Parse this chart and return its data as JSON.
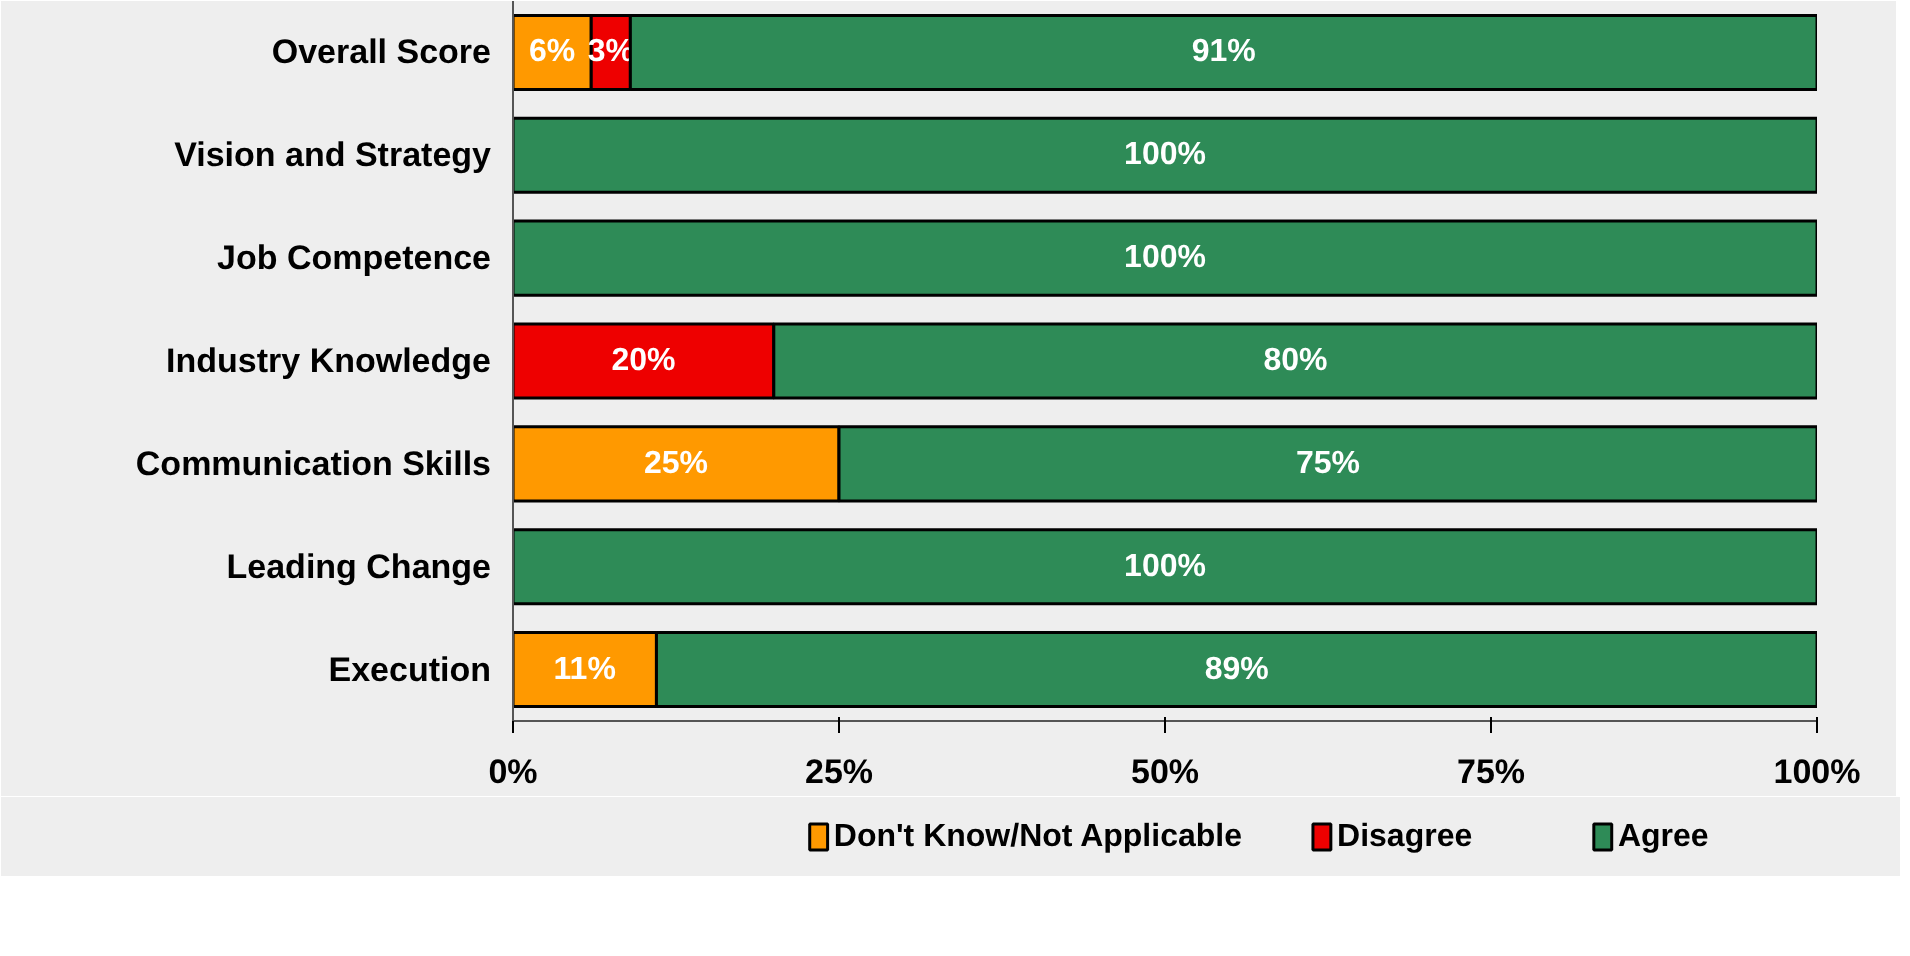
{
  "chart_data": {
    "type": "bar",
    "orientation": "horizontal",
    "stacked": true,
    "categories": [
      "Overall Score",
      "Vision and Strategy",
      "Job Competence",
      "Industry Knowledge",
      "Communication Skills",
      "Leading Change",
      "Execution"
    ],
    "series": [
      {
        "name": "Don't Know/Not Applicable",
        "color": "#ff9900",
        "values": [
          6,
          null,
          null,
          null,
          25,
          null,
          11
        ],
        "value_labels": [
          "6%",
          null,
          null,
          null,
          "25%",
          null,
          "11%"
        ]
      },
      {
        "name": "Disagree",
        "color": "#ee0000",
        "values": [
          3,
          null,
          null,
          20,
          null,
          null,
          null
        ],
        "value_labels": [
          "3%",
          null,
          null,
          "20%",
          null,
          null,
          null
        ]
      },
      {
        "name": "Agree",
        "color": "#2e8b57",
        "values": [
          91,
          100,
          100,
          80,
          75,
          100,
          89
        ],
        "value_labels": [
          "91%",
          "100%",
          "100%",
          "80%",
          "75%",
          "100%",
          "89%"
        ]
      }
    ],
    "xlim": [
      0,
      100
    ],
    "xticks": [
      {
        "value": 0,
        "label": "0%"
      },
      {
        "value": 25,
        "label": "25%"
      },
      {
        "value": 50,
        "label": "50%"
      },
      {
        "value": 75,
        "label": "75%"
      },
      {
        "value": 100,
        "label": "100%"
      }
    ],
    "grid": false,
    "legend": "bottom"
  }
}
